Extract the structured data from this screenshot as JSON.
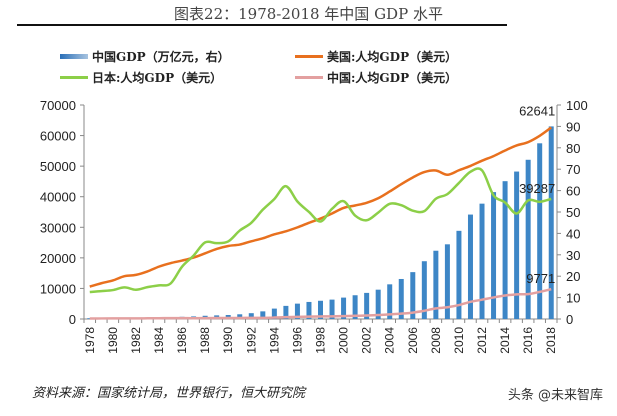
{
  "title": "图表22：1978-2018 年中国 GDP 水平",
  "source": "资料来源：国家统计局，世界银行，恒大研究院",
  "watermark": "头条 @未来智库",
  "chart_data": {
    "type": "bar+line",
    "categories": [
      1978,
      1979,
      1980,
      1981,
      1982,
      1983,
      1984,
      1985,
      1986,
      1987,
      1988,
      1989,
      1990,
      1991,
      1992,
      1993,
      1994,
      1995,
      1996,
      1997,
      1998,
      1999,
      2000,
      2001,
      2002,
      2003,
      2004,
      2005,
      2006,
      2007,
      2008,
      2009,
      2010,
      2011,
      2012,
      2013,
      2014,
      2015,
      2016,
      2017,
      2018
    ],
    "x_tick_labels": [
      "1978",
      "1980",
      "1982",
      "1984",
      "1986",
      "1988",
      "1990",
      "1992",
      "1994",
      "1996",
      "1998",
      "2000",
      "2002",
      "2004",
      "2006",
      "2008",
      "2010",
      "2012",
      "2014",
      "2016",
      "2018"
    ],
    "y_left": {
      "range": [
        0,
        70000
      ],
      "ticks": [
        "0",
        "10000",
        "20000",
        "30000",
        "40000",
        "50000",
        "60000",
        "70000"
      ]
    },
    "y_right": {
      "range": [
        0,
        100
      ],
      "ticks": [
        "0",
        "10",
        "20",
        "30",
        "40",
        "50",
        "60",
        "70",
        "80",
        "90",
        "100"
      ]
    },
    "series": [
      {
        "name": "中国GDP（万亿元，右）",
        "type": "bar",
        "axis": "right",
        "color": "#3d86c6",
        "values": [
          0.37,
          0.41,
          0.46,
          0.49,
          0.54,
          0.6,
          0.72,
          0.9,
          1.03,
          1.21,
          1.51,
          1.7,
          1.87,
          2.2,
          2.72,
          3.57,
          4.86,
          6.13,
          7.18,
          7.97,
          8.52,
          9.06,
          10.0,
          11.1,
          12.2,
          13.7,
          16.2,
          18.7,
          21.9,
          27.0,
          31.9,
          34.9,
          41.2,
          48.8,
          53.9,
          59.3,
          64.4,
          68.9,
          74.4,
          82.1,
          90.0
        ]
      },
      {
        "name": "美国:人均GDP（美元）",
        "type": "line",
        "axis": "left",
        "color": "#e8701e",
        "values": [
          10587,
          11696,
          12597,
          13993,
          14438,
          15561,
          17135,
          18269,
          19115,
          20101,
          21483,
          22922,
          23889,
          24342,
          25419,
          26387,
          27695,
          28691,
          29968,
          31459,
          32854,
          34515,
          36335,
          37133,
          38023,
          39497,
          41712,
          44115,
          46299,
          48050,
          48570,
          47195,
          48651,
          50066,
          51784,
          53291,
          55124,
          56763,
          57867,
          59928,
          62641
        ],
        "end_label": "62641"
      },
      {
        "name": "日本:人均GDP（美元）",
        "type": "line",
        "axis": "left",
        "color": "#8ccf48",
        "values": [
          8821,
          9105,
          9463,
          10361,
          9578,
          10425,
          10984,
          11585,
          17112,
          20745,
          25052,
          24813,
          25371,
          28925,
          31465,
          35766,
          39269,
          43440,
          38437,
          35022,
          31903,
          36027,
          38532,
          33846,
          32289,
          34808,
          37689,
          37218,
          35434,
          35275,
          39339,
          40855,
          44508,
          48168,
          48603,
          40454,
          38109,
          34524,
          38794,
          38332,
          39287
        ],
        "end_label": "39287"
      },
      {
        "name": "中国:人均GDP（美元）",
        "type": "line",
        "axis": "left",
        "color": "#e3a0a0",
        "values": [
          156,
          184,
          195,
          197,
          203,
          225,
          251,
          294,
          282,
          252,
          283,
          310,
          318,
          333,
          366,
          377,
          473,
          610,
          709,
          782,
          829,
          873,
          959,
          1053,
          1149,
          1289,
          1509,
          1753,
          2099,
          2694,
          3468,
          3832,
          4550,
          5618,
          6317,
          7051,
          7679,
          8067,
          8148,
          8879,
          9771
        ],
        "end_label": "9771"
      }
    ]
  }
}
